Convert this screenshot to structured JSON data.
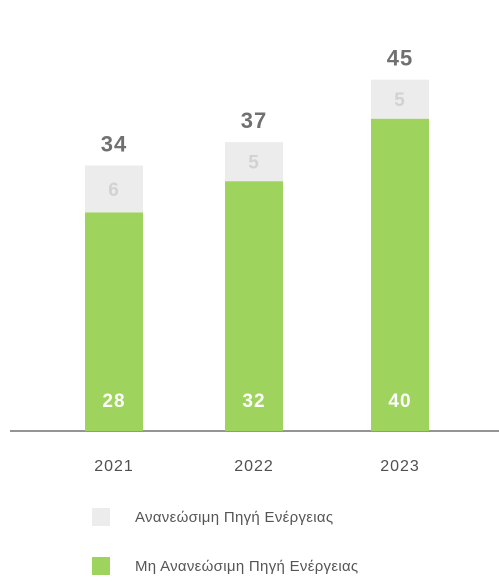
{
  "chart_data": {
    "type": "bar",
    "stacked": true,
    "categories": [
      "2021",
      "2022",
      "2023"
    ],
    "series": [
      {
        "name": "Μη Ανανεώσιμη Πηγή Ενέργειας",
        "values": [
          28,
          32,
          40
        ],
        "color": "#9ed35d"
      },
      {
        "name": "Ανανεώσιμη Πηγή Ενέργειας",
        "values": [
          6,
          5,
          5
        ],
        "color": "#ececec"
      }
    ],
    "totals": [
      34,
      37,
      45
    ],
    "ylim": [
      0,
      52
    ],
    "title": "",
    "xlabel": "",
    "ylabel": "",
    "grid": false,
    "legend_position": "bottom"
  },
  "colors": {
    "segment_label": "#ffffff",
    "segment_label_light": "#d2d2d2",
    "total_label": "#707070",
    "axis": "#555555",
    "tick_label": "#505050"
  }
}
